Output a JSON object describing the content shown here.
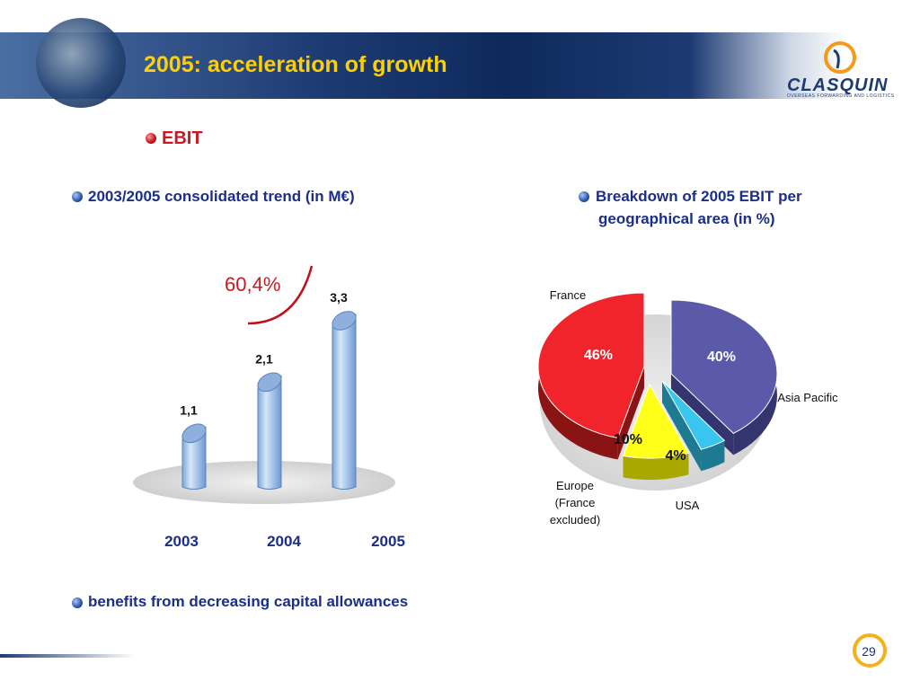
{
  "header": {
    "title": "2005: acceleration of growth"
  },
  "logo": {
    "name": "CLASQUIN",
    "tagline": "OVERSEAS FORWARDING AND LOGISTICS"
  },
  "section": {
    "heading": "EBIT"
  },
  "left_heading": "2003/2005 consolidated trend (in M€)",
  "right_heading_line1": "Breakdown of 2005 EBIT per",
  "right_heading_line2": "geographical area (in %)",
  "bottom_note": "benefits from decreasing capital allowances",
  "growth_label": "60,4%",
  "page_number": "29",
  "colors": {
    "title": "#ffd000",
    "heading": "#1a2e8a",
    "accent": "#d0161f"
  },
  "chart_data": [
    {
      "type": "bar",
      "categories": [
        "2003",
        "2004",
        "2005"
      ],
      "values": [
        1.1,
        2.1,
        3.3
      ],
      "value_labels": [
        "1,1",
        "2,1",
        "3,3"
      ],
      "ylim": [
        0,
        3.5
      ]
    },
    {
      "type": "pie",
      "labels": [
        "France",
        "Asia Pacific",
        "USA",
        "Europe\n(France\nexcluded)"
      ],
      "values": [
        46,
        40,
        4,
        10
      ],
      "value_labels": [
        "46%",
        "40%",
        "4%",
        "10%"
      ],
      "colors": [
        "#f0242a",
        "#5a5aa8",
        "#38c6ee",
        "#ffff1a"
      ]
    }
  ]
}
